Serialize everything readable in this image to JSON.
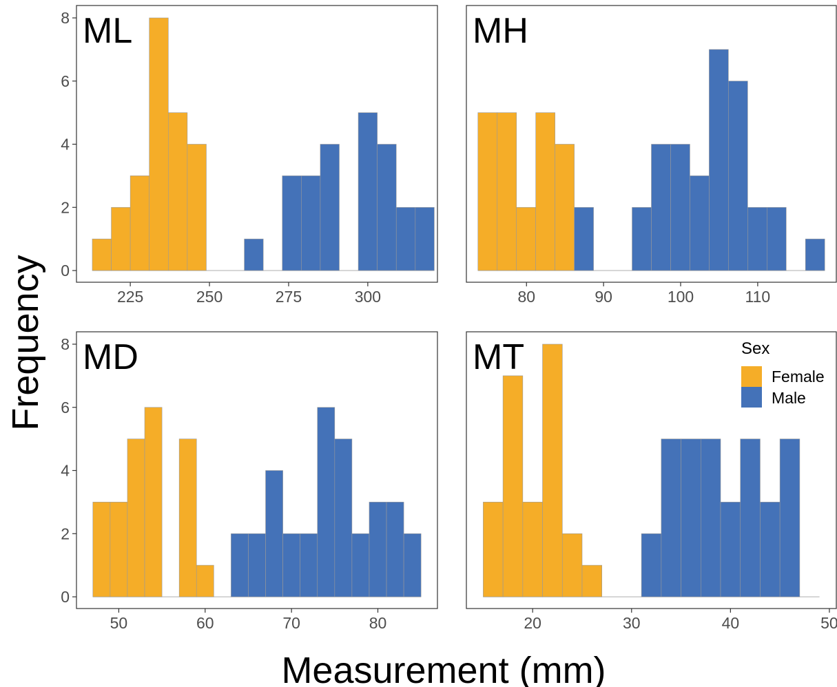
{
  "figure": {
    "xlabel": "Measurement (mm)",
    "ylabel": "Frequency"
  },
  "legend": {
    "title": "Sex",
    "placement": "top-right of MT panel",
    "entries": [
      {
        "label": "Female",
        "color": "#F5AD28"
      },
      {
        "label": "Male",
        "color": "#4472B8"
      }
    ]
  },
  "colors": {
    "female": "#F5AD28",
    "male": "#4472B8",
    "bar_outline": "#999999",
    "panel_border": "#333333",
    "tick_text": "#4d4d4d"
  },
  "chart_data": [
    {
      "type": "bar",
      "panel": "ML",
      "xlim": [
        208,
        322
      ],
      "ylim": [
        0,
        8
      ],
      "xticks": [
        225,
        250,
        275,
        300
      ],
      "yticks": [
        0,
        2,
        4,
        6,
        8
      ],
      "show_yticks": true,
      "grid": false,
      "bin_width": 6,
      "series": [
        {
          "name": "Female",
          "bins": [
            [
              213,
              1
            ],
            [
              219,
              2
            ],
            [
              225,
              3
            ],
            [
              231,
              8
            ],
            [
              237,
              5
            ],
            [
              243,
              4
            ]
          ]
        },
        {
          "name": "Male",
          "bins": [
            [
              261,
              1
            ],
            [
              273,
              3
            ],
            [
              279,
              3
            ],
            [
              285,
              4
            ],
            [
              297,
              5
            ],
            [
              303,
              4
            ],
            [
              309,
              2
            ],
            [
              315,
              2
            ]
          ]
        }
      ]
    },
    {
      "type": "bar",
      "panel": "MH",
      "xlim": [
        72.2,
        120.2
      ],
      "ylim": [
        0,
        8
      ],
      "xticks": [
        80,
        90,
        100,
        110
      ],
      "yticks": [
        0,
        2,
        4,
        6,
        8
      ],
      "show_yticks": false,
      "grid": false,
      "bin_width": 2.5,
      "series": [
        {
          "name": "Female",
          "bins": [
            [
              73.7,
              5
            ],
            [
              76.2,
              5
            ],
            [
              78.7,
              2
            ],
            [
              81.2,
              5
            ],
            [
              83.7,
              4
            ]
          ]
        },
        {
          "name": "Male",
          "bins": [
            [
              86.2,
              2
            ],
            [
              93.7,
              2
            ],
            [
              96.2,
              4
            ],
            [
              98.7,
              4
            ],
            [
              101.2,
              3
            ],
            [
              103.7,
              7
            ],
            [
              106.2,
              6
            ],
            [
              108.7,
              2
            ],
            [
              111.2,
              2
            ],
            [
              116.2,
              1
            ]
          ]
        }
      ]
    },
    {
      "type": "bar",
      "panel": "MD",
      "xlim": [
        45.1,
        86.9
      ],
      "ylim": [
        0,
        8
      ],
      "xticks": [
        50,
        60,
        70,
        80
      ],
      "yticks": [
        0,
        2,
        4,
        6,
        8
      ],
      "show_yticks": true,
      "grid": false,
      "bin_width": 2,
      "series": [
        {
          "name": "Female",
          "bins": [
            [
              47,
              3
            ],
            [
              49,
              3
            ],
            [
              51,
              5
            ],
            [
              53,
              6
            ],
            [
              57,
              5
            ],
            [
              59,
              1
            ]
          ]
        },
        {
          "name": "Male",
          "bins": [
            [
              63,
              2
            ],
            [
              65,
              2
            ],
            [
              67,
              4
            ],
            [
              69,
              2
            ],
            [
              71,
              2
            ],
            [
              73,
              6
            ],
            [
              75,
              5
            ],
            [
              77,
              2
            ],
            [
              79,
              3
            ],
            [
              81,
              3
            ],
            [
              83,
              2
            ]
          ]
        }
      ]
    },
    {
      "type": "bar",
      "panel": "MT",
      "xlim": [
        13.3,
        50.7
      ],
      "ylim": [
        0,
        8
      ],
      "xticks": [
        20,
        30,
        40,
        50
      ],
      "yticks": [
        0,
        2,
        4,
        6,
        8
      ],
      "show_yticks": false,
      "grid": false,
      "bin_width": 2,
      "series": [
        {
          "name": "Female",
          "bins": [
            [
              15,
              3
            ],
            [
              17,
              7
            ],
            [
              19,
              3
            ],
            [
              21,
              8
            ],
            [
              23,
              2
            ],
            [
              25,
              1
            ]
          ]
        },
        {
          "name": "Male",
          "bins": [
            [
              31,
              2
            ],
            [
              33,
              5
            ],
            [
              35,
              5
            ],
            [
              37,
              5
            ],
            [
              39,
              3
            ],
            [
              41,
              5
            ],
            [
              43,
              3
            ],
            [
              45,
              5
            ]
          ]
        }
      ]
    }
  ]
}
